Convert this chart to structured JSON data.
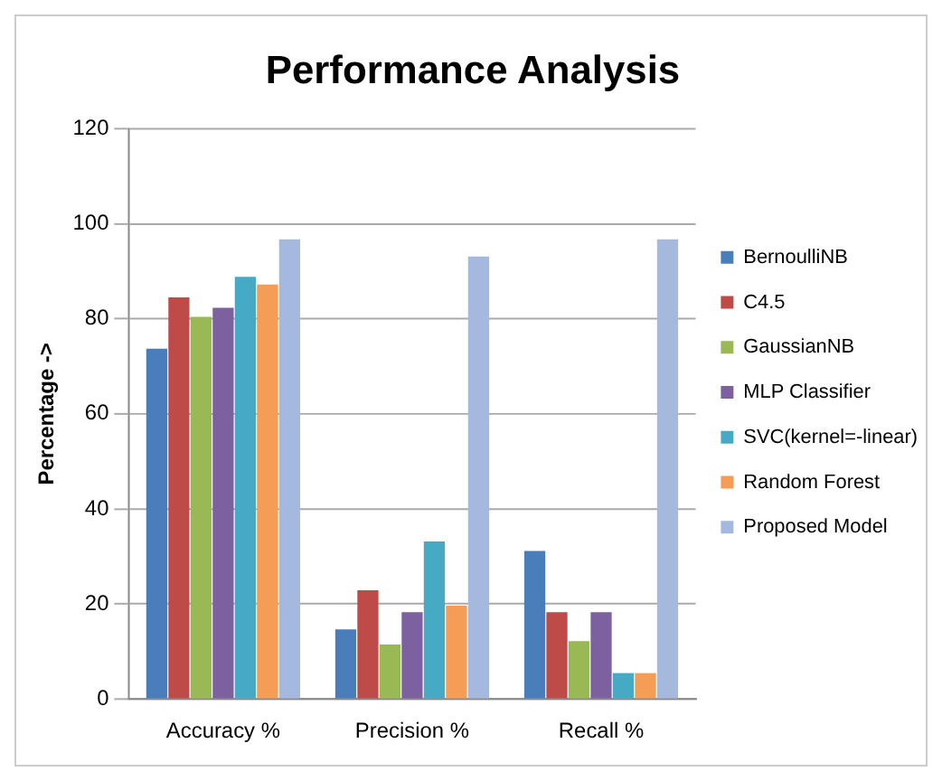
{
  "chart_data": {
    "type": "bar",
    "title": "Performance Analysis",
    "ylabel": "Percentage ->",
    "categories": [
      "Accuracy %",
      "Precision %",
      "Recall %"
    ],
    "series": [
      {
        "name": "BernoulliNB",
        "color": "#4a7ebb",
        "values": [
          73.7,
          14.7,
          31.2
        ]
      },
      {
        "name": "C4.5",
        "color": "#be4b48",
        "values": [
          84.5,
          22.9,
          18.3
        ]
      },
      {
        "name": "GaussianNB",
        "color": "#98b954",
        "values": [
          80.4,
          11.5,
          12.2
        ]
      },
      {
        "name": "MLP Classifier",
        "color": "#7d60a0",
        "values": [
          82.3,
          18.3,
          18.3
        ]
      },
      {
        "name": "SVC(kernel=-linear)",
        "color": "#46aac5",
        "values": [
          88.8,
          33.2,
          5.5
        ]
      },
      {
        "name": "Random Forest",
        "color": "#f59d56",
        "values": [
          87.2,
          19.7,
          5.5
        ]
      },
      {
        "name": "Proposed Model",
        "color": "#a5b9de",
        "values": [
          96.7,
          93.1,
          96.7
        ]
      }
    ],
    "ylim": [
      0,
      120
    ],
    "yticks": [
      0,
      20,
      40,
      60,
      80,
      100,
      120
    ],
    "grid": "y",
    "legend": "right"
  }
}
